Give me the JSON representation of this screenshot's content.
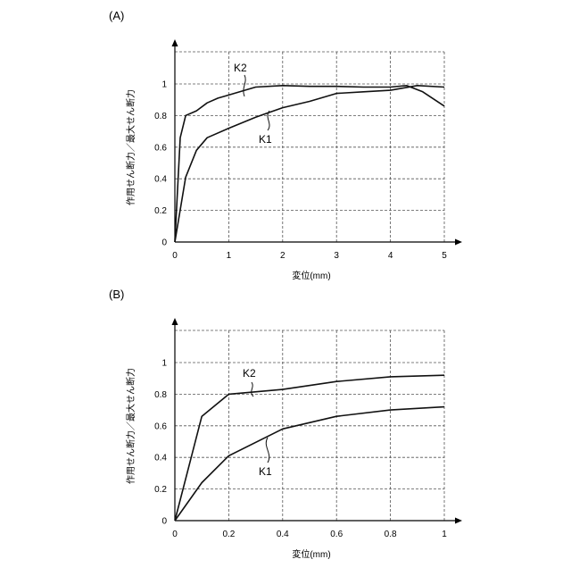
{
  "chart_data": [
    {
      "type": "line",
      "panel_label": "(A)",
      "xlabel": "変位(mm)",
      "ylabel": "作用せん断力／最大せん断力",
      "xlim": [
        0,
        5
      ],
      "ylim": [
        0,
        1
      ],
      "x_ticks": [
        0,
        1,
        2,
        3,
        4,
        5
      ],
      "y_ticks": [
        0,
        0.2,
        0.4,
        0.6,
        0.8,
        1
      ],
      "x_tick_labels": [
        "0",
        "1",
        "2",
        "3",
        "4",
        "5"
      ],
      "y_tick_labels": [
        "0",
        "0.2",
        "0.4",
        "0.6",
        "0.8",
        "1"
      ],
      "grid": true,
      "series": [
        {
          "name": "K2",
          "x": [
            0,
            0.1,
            0.2,
            0.4,
            0.6,
            0.8,
            1.0,
            1.5,
            2.0,
            2.5,
            3.0,
            3.5,
            4.0,
            4.3,
            4.6,
            5.0
          ],
          "y": [
            0,
            0.66,
            0.8,
            0.83,
            0.88,
            0.91,
            0.93,
            0.98,
            0.99,
            0.985,
            0.985,
            0.98,
            0.98,
            0.99,
            0.95,
            0.86
          ]
        },
        {
          "name": "K1",
          "x": [
            0,
            0.2,
            0.4,
            0.6,
            1.0,
            1.5,
            2.0,
            2.5,
            3.0,
            3.5,
            4.0,
            4.5,
            5.0
          ],
          "y": [
            0,
            0.41,
            0.58,
            0.66,
            0.72,
            0.79,
            0.85,
            0.89,
            0.94,
            0.95,
            0.96,
            0.99,
            0.98
          ]
        }
      ]
    },
    {
      "type": "line",
      "panel_label": "(B)",
      "xlabel": "変位(mm)",
      "ylabel": "作用せん断力／最大せん断力",
      "xlim": [
        0,
        1
      ],
      "ylim": [
        0,
        1
      ],
      "x_ticks": [
        0,
        0.2,
        0.4,
        0.6,
        0.8,
        1
      ],
      "y_ticks": [
        0,
        0.2,
        0.4,
        0.6,
        0.8,
        1
      ],
      "x_tick_labels": [
        "0",
        "0.2",
        "0.4",
        "0.6",
        "0.8",
        "1"
      ],
      "y_tick_labels": [
        "0",
        "0.2",
        "0.4",
        "0.6",
        "0.8",
        "1"
      ],
      "grid": true,
      "series": [
        {
          "name": "K2",
          "x": [
            0,
            0.1,
            0.2,
            0.4,
            0.6,
            0.8,
            1.0
          ],
          "y": [
            0,
            0.66,
            0.8,
            0.83,
            0.88,
            0.91,
            0.92
          ]
        },
        {
          "name": "K1",
          "x": [
            0,
            0.1,
            0.2,
            0.4,
            0.6,
            0.8,
            1.0
          ],
          "y": [
            0,
            0.24,
            0.41,
            0.58,
            0.66,
            0.7,
            0.72
          ]
        }
      ]
    }
  ]
}
